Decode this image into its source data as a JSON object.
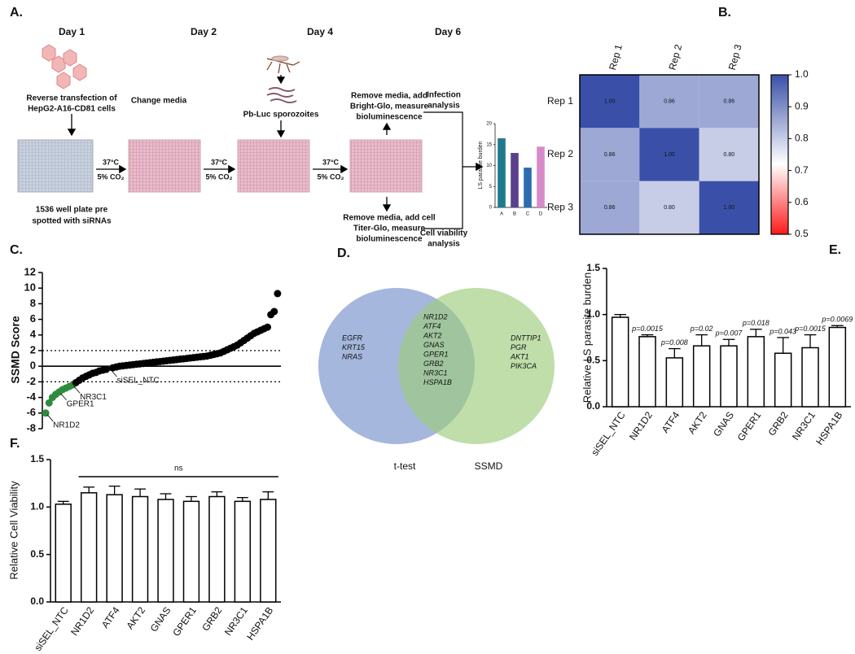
{
  "panels": {
    "a": "A.",
    "b": "B.",
    "c": "C.",
    "d": "D.",
    "e": "E.",
    "f": "F."
  },
  "diagram": {
    "days": [
      "Day 1",
      "Day 2",
      "Day 4",
      "Day 6"
    ],
    "step1": [
      "Reverse transfection of",
      "HepG2-A16-CD81 cells"
    ],
    "plate": [
      "1536 well plate pre",
      "spotted with siRNAs"
    ],
    "step2": "Change media",
    "step4": "Pb-Luc sporozoites",
    "infection_step": [
      "Remove media, add",
      "Bright-Glo, measure",
      "bioluminescence"
    ],
    "viability_step": [
      "Remove media, add cell",
      "Titer-Glo, measure",
      "bioluminescence"
    ],
    "infection_analysis": [
      "Infection",
      "analysis"
    ],
    "viability_analysis": [
      "Cell viability",
      "analysis"
    ],
    "incubation": [
      "37°C",
      "5% CO₂"
    ]
  },
  "venn": {
    "left_label": "t-test",
    "right_label": "SSMD",
    "left_only": [
      "EGFR",
      "KRT15",
      "NRAS"
    ],
    "both": [
      "NR1D2",
      "ATF4",
      "AKT2",
      "GNAS",
      "GPER1",
      "GRB2",
      "NR3C1",
      "HSPA1B"
    ],
    "right_only": [
      "DNTTIP1",
      "PGR",
      "AKT1",
      "PIK3CA"
    ]
  },
  "chart_data": [
    {
      "type": "heatmap",
      "rows": [
        "Rep 1",
        "Rep 2",
        "Rep 3"
      ],
      "columns": [
        "Rep 1",
        "Rep 2",
        "Rep 3"
      ],
      "values": [
        [
          1,
          0.86,
          0.86
        ],
        [
          0.86,
          1,
          0.8
        ],
        [
          0.86,
          0.8,
          1
        ]
      ],
      "value_labels": [
        [
          "1.00",
          "0.86",
          "0.86"
        ],
        [
          "0.86",
          "1.00",
          "0.80"
        ],
        [
          "0.86",
          "0.80",
          "1.00"
        ]
      ],
      "colorscale": [
        [
          0.5,
          "#ff1a1a"
        ],
        [
          0.72,
          "#ffffff"
        ],
        [
          1,
          "#3a50a8"
        ]
      ],
      "zlim": [
        0.5,
        1
      ],
      "zticks": [
        {
          "value": 1,
          "label": "1.0"
        },
        0.9,
        0.8,
        0.7,
        0.6,
        0.5
      ]
    },
    {
      "type": "scatter",
      "ylabel": "SSMD Score",
      "xlim": [
        0,
        71
      ],
      "ylim": [
        -8,
        12
      ],
      "yticks": [
        -8,
        -6,
        -4,
        -2,
        0,
        2,
        4,
        6,
        8,
        10,
        12
      ],
      "hlines": [
        {
          "y": 2,
          "style": "dotted"
        },
        {
          "y": -2,
          "style": "dotted"
        },
        {
          "y": 0,
          "style": "solid"
        }
      ],
      "series": [
        {
          "color": "#2e8b3e",
          "x": [
            1,
            2,
            3,
            4,
            5,
            6,
            7,
            8,
            9
          ],
          "values": [
            -6.0,
            -4.7,
            -4.0,
            -3.6,
            -3.3,
            -3.0,
            -2.8,
            -2.6,
            -2.4
          ]
        },
        {
          "color": "#d42020",
          "x": [
            20
          ],
          "values": [
            -0.3
          ]
        },
        {
          "color": "#000000",
          "x": [
            10,
            11,
            12,
            13,
            14,
            15,
            16,
            17,
            18,
            19,
            21,
            22,
            23,
            24,
            25,
            26,
            27,
            28,
            29,
            30,
            31,
            32,
            33,
            34,
            35,
            36,
            37,
            38,
            39,
            40,
            41,
            42,
            43,
            44,
            45,
            46,
            47,
            48,
            49,
            50,
            51,
            52,
            53,
            54,
            55,
            56,
            57,
            58,
            59,
            60,
            61,
            62,
            63,
            64,
            65,
            66,
            67,
            68,
            69,
            70
          ],
          "values": [
            -2.1,
            -1.8,
            -1.5,
            -1.3,
            -1.1,
            -0.9,
            -0.8,
            -0.6,
            -0.5,
            -0.4,
            -0.2,
            -0.1,
            0,
            0.05,
            0.1,
            0.15,
            0.2,
            0.25,
            0.3,
            0.35,
            0.4,
            0.45,
            0.5,
            0.55,
            0.6,
            0.65,
            0.7,
            0.75,
            0.8,
            0.85,
            0.9,
            0.95,
            1.0,
            1.05,
            1.1,
            1.15,
            1.2,
            1.25,
            1.3,
            1.4,
            1.5,
            1.6,
            1.7,
            1.9,
            2.1,
            2.3,
            2.5,
            2.7,
            3.0,
            3.3,
            3.6,
            3.9,
            4.2,
            4.4,
            4.6,
            4.8,
            5.0,
            6.6,
            7.0,
            9.3
          ]
        }
      ],
      "annotations": [
        {
          "text": "NR1D2",
          "series": 0,
          "point": 0
        },
        {
          "text": "GPER1",
          "series": 0,
          "point": 4
        },
        {
          "text": "NR3C1",
          "series": 0,
          "point": 8
        },
        {
          "text": "siSEL_NTC",
          "series": 1,
          "point": 0
        }
      ]
    },
    {
      "type": "bar",
      "ylabel": "Relative LS parasite burden",
      "color": "#ffffff",
      "categories": [
        "siSEL_NTC",
        "NR1D2",
        "ATF4",
        "AKT2",
        "GNAS",
        "GPER1",
        "GRB2",
        "NR3C1",
        "HSPA1B"
      ],
      "values": [
        0.97,
        0.76,
        0.53,
        0.66,
        0.66,
        0.76,
        0.58,
        0.64,
        0.86
      ],
      "errors": [
        0.03,
        0.02,
        0.1,
        0.12,
        0.07,
        0.08,
        0.17,
        0.14,
        0.02
      ],
      "annotations": [
        null,
        "p=0.0015",
        "p=0.008",
        "p=0.02",
        "p=0.007",
        "p=0.018",
        "p=0.043",
        "p=0.0015",
        "p=0.0069"
      ],
      "ylim": [
        0,
        1.5
      ],
      "yticks": [
        {
          "value": 0,
          "label": "0.0"
        },
        0.5,
        {
          "value": 1,
          "label": "1.0"
        },
        1.5
      ]
    },
    {
      "type": "bar",
      "ylabel": "Relative Cell Viability",
      "color": "#ffffff",
      "categories": [
        "siSEL_NTC",
        "NR1D2",
        "ATF4",
        "AKT2",
        "GNAS",
        "GPER1",
        "GRB2",
        "NR3C1",
        "HSPA1B"
      ],
      "values": [
        1.03,
        1.15,
        1.13,
        1.11,
        1.08,
        1.06,
        1.11,
        1.06,
        1.08
      ],
      "errors": [
        0.03,
        0.06,
        0.09,
        0.08,
        0.06,
        0.05,
        0.05,
        0.04,
        0.08
      ],
      "bracket": {
        "text": "ns",
        "from": 1,
        "to": 8,
        "y": 1.32
      },
      "ylim": [
        0,
        1.5
      ],
      "yticks": [
        {
          "value": 0,
          "label": "0.0"
        },
        0.5,
        {
          "value": 1,
          "label": "1.0"
        },
        1.5
      ]
    },
    {
      "type": "bar",
      "ylabel": "LS parasite burden",
      "categories": [
        "A",
        "B",
        "C",
        "D"
      ],
      "values": [
        16.5,
        13,
        9.5,
        14.5
      ],
      "colors": [
        "#1f7a8c",
        "#5b3f8c",
        "#2b6cb0",
        "#d88ac8"
      ],
      "ylim": [
        0,
        20
      ],
      "yticks": [
        0,
        5,
        10,
        15,
        20
      ]
    }
  ]
}
